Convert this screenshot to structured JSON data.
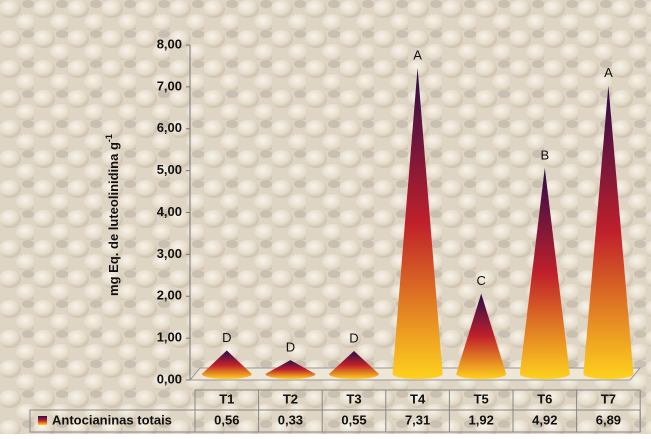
{
  "chart_data": {
    "type": "cone",
    "y_label": "mg Eq. de luteolinidina g",
    "y_label_sup": "-1",
    "categories": [
      "T1",
      "T2",
      "T3",
      "T4",
      "T5",
      "T6",
      "T7"
    ],
    "series": [
      {
        "name": "Antocianinas totais",
        "values": [
          0.56,
          0.33,
          0.55,
          7.31,
          1.92,
          4.92,
          6.89
        ],
        "value_labels": [
          "0,56",
          "0,33",
          "0,55",
          "7,31",
          "1,92",
          "4,92",
          "6,89"
        ],
        "colors": [
          "#ffd21e",
          "#c0202a",
          "#2a0d4a"
        ]
      }
    ],
    "annotations": [
      "D",
      "D",
      "D",
      "A",
      "C",
      "B",
      "A"
    ],
    "ylim": [
      0,
      8
    ],
    "yticks": [
      {
        "value": 0,
        "label": "0,00"
      },
      {
        "value": 1,
        "label": "1,00"
      },
      {
        "value": 2,
        "label": "2,00"
      },
      {
        "value": 3,
        "label": "3,00"
      },
      {
        "value": 4,
        "label": "4,00"
      },
      {
        "value": 5,
        "label": "5,00"
      },
      {
        "value": 6,
        "label": "6,00"
      },
      {
        "value": 7,
        "label": "7,00"
      },
      {
        "value": 8,
        "label": "8,00"
      }
    ]
  }
}
